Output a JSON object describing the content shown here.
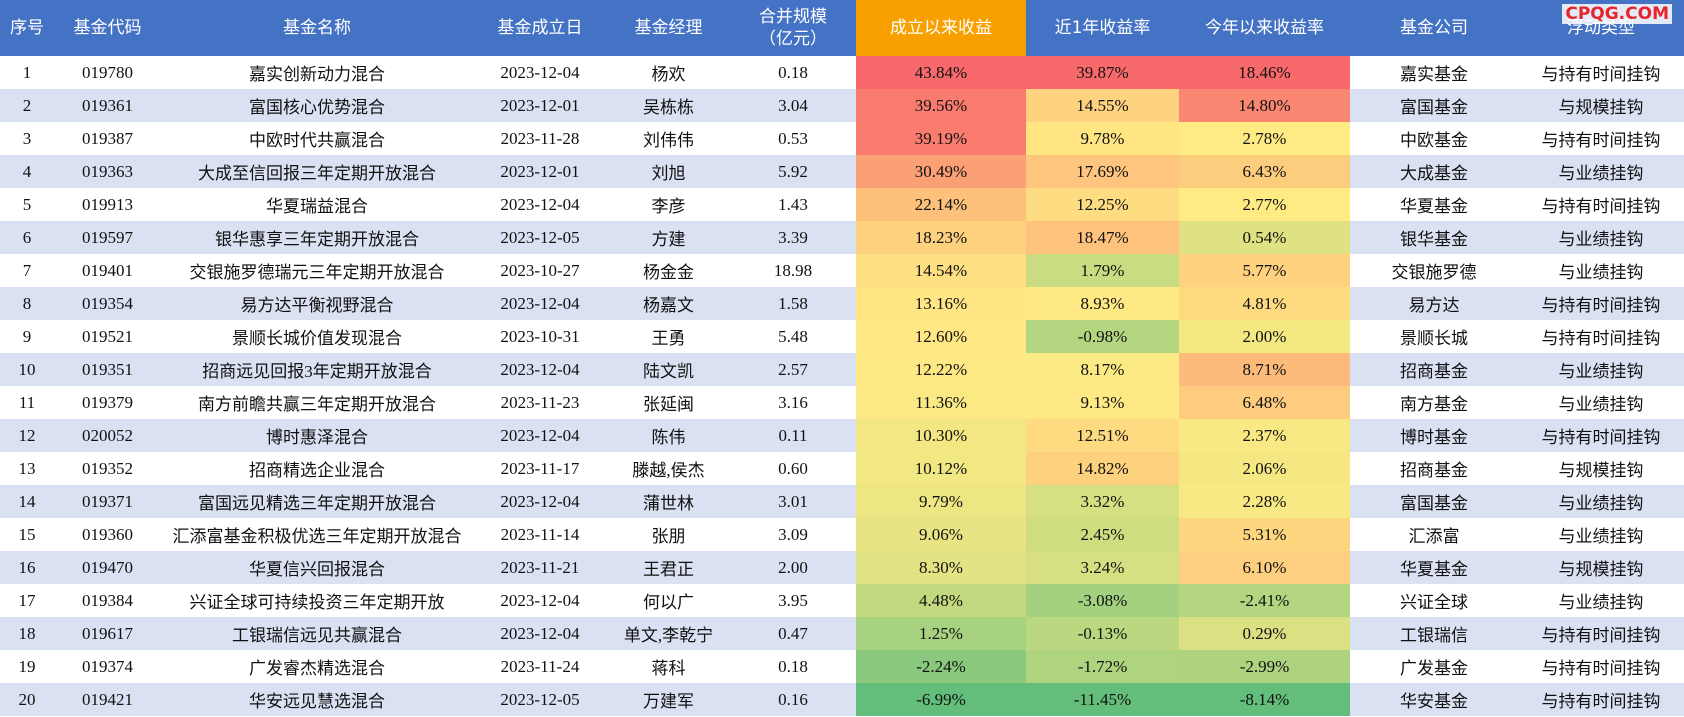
{
  "watermark": "CPQG.COM",
  "table": {
    "header": [
      "序号",
      "基金代码",
      "基金名称",
      "基金成立日",
      "基金经理",
      "合并规模\n（亿元）",
      "成立以来收益",
      "近1年收益率",
      "今年以来收益率",
      "基金公司",
      "浮动类型"
    ],
    "rows": [
      [
        "1",
        "019780",
        "嘉实创新动力混合",
        "2023-12-04",
        "杨欢",
        "0.18",
        "43.84%",
        "39.87%",
        "18.46%",
        "嘉实基金",
        "与持有时间挂钩"
      ],
      [
        "2",
        "019361",
        "富国核心优势混合",
        "2023-12-01",
        "吴栋栋",
        "3.04",
        "39.56%",
        "14.55%",
        "14.80%",
        "富国基金",
        "与规模挂钩"
      ],
      [
        "3",
        "019387",
        "中欧时代共赢混合",
        "2023-11-28",
        "刘伟伟",
        "0.53",
        "39.19%",
        "9.78%",
        "2.78%",
        "中欧基金",
        "与持有时间挂钩"
      ],
      [
        "4",
        "019363",
        "大成至信回报三年定期开放混合",
        "2023-12-01",
        "刘旭",
        "5.92",
        "30.49%",
        "17.69%",
        "6.43%",
        "大成基金",
        "与业绩挂钩"
      ],
      [
        "5",
        "019913",
        "华夏瑞益混合",
        "2023-12-04",
        "李彦",
        "1.43",
        "22.14%",
        "12.25%",
        "2.77%",
        "华夏基金",
        "与持有时间挂钩"
      ],
      [
        "6",
        "019597",
        "银华惠享三年定期开放混合",
        "2023-12-05",
        "方建",
        "3.39",
        "18.23%",
        "18.47%",
        "0.54%",
        "银华基金",
        "与业绩挂钩"
      ],
      [
        "7",
        "019401",
        "交银施罗德瑞元三年定期开放混合",
        "2023-10-27",
        "杨金金",
        "18.98",
        "14.54%",
        "1.79%",
        "5.77%",
        "交银施罗德",
        "与业绩挂钩"
      ],
      [
        "8",
        "019354",
        "易方达平衡视野混合",
        "2023-12-04",
        "杨嘉文",
        "1.58",
        "13.16%",
        "8.93%",
        "4.81%",
        "易方达",
        "与持有时间挂钩"
      ],
      [
        "9",
        "019521",
        "景顺长城价值发现混合",
        "2023-10-31",
        "王勇",
        "5.48",
        "12.60%",
        "-0.98%",
        "2.00%",
        "景顺长城",
        "与持有时间挂钩"
      ],
      [
        "10",
        "019351",
        "招商远见回报3年定期开放混合",
        "2023-12-04",
        "陆文凯",
        "2.57",
        "12.22%",
        "8.17%",
        "8.71%",
        "招商基金",
        "与业绩挂钩"
      ],
      [
        "11",
        "019379",
        "南方前瞻共赢三年定期开放混合",
        "2023-11-23",
        "张延闽",
        "3.16",
        "11.36%",
        "9.13%",
        "6.48%",
        "南方基金",
        "与业绩挂钩"
      ],
      [
        "12",
        "020052",
        "博时惠泽混合",
        "2023-12-04",
        "陈伟",
        "0.11",
        "10.30%",
        "12.51%",
        "2.37%",
        "博时基金",
        "与持有时间挂钩"
      ],
      [
        "13",
        "019352",
        "招商精选企业混合",
        "2023-11-17",
        "滕越,侯杰",
        "0.60",
        "10.12%",
        "14.82%",
        "2.06%",
        "招商基金",
        "与规模挂钩"
      ],
      [
        "14",
        "019371",
        "富国远见精选三年定期开放混合",
        "2023-12-04",
        "蒲世林",
        "3.01",
        "9.79%",
        "3.32%",
        "2.28%",
        "富国基金",
        "与业绩挂钩"
      ],
      [
        "15",
        "019360",
        "汇添富基金积极优选三年定期开放混合",
        "2023-11-14",
        "张朋",
        "3.09",
        "9.06%",
        "2.45%",
        "5.31%",
        "汇添富",
        "与业绩挂钩"
      ],
      [
        "16",
        "019470",
        "华夏信兴回报混合",
        "2023-11-21",
        "王君正",
        "2.00",
        "8.30%",
        "3.24%",
        "6.10%",
        "华夏基金",
        "与规模挂钩"
      ],
      [
        "17",
        "019384",
        "兴证全球可持续投资三年定期开放",
        "2023-12-04",
        "何以广",
        "3.95",
        "4.48%",
        "-3.08%",
        "-2.41%",
        "兴证全球",
        "与业绩挂钩"
      ],
      [
        "18",
        "019617",
        "工银瑞信远见共赢混合",
        "2023-12-04",
        "单文,李乾宁",
        "0.47",
        "1.25%",
        "-0.13%",
        "0.29%",
        "工银瑞信",
        "与持有时间挂钩"
      ],
      [
        "19",
        "019374",
        "广发睿杰精选混合",
        "2023-11-24",
        "蒋科",
        "0.18",
        "-2.24%",
        "-1.72%",
        "-2.99%",
        "广发基金",
        "与持有时间挂钩"
      ],
      [
        "20",
        "019421",
        "华安远见慧选混合",
        "2023-12-05",
        "万建军",
        "0.16",
        "-6.99%",
        "-11.45%",
        "-8.14%",
        "华安基金",
        "与持有时间挂钩"
      ]
    ]
  }
}
